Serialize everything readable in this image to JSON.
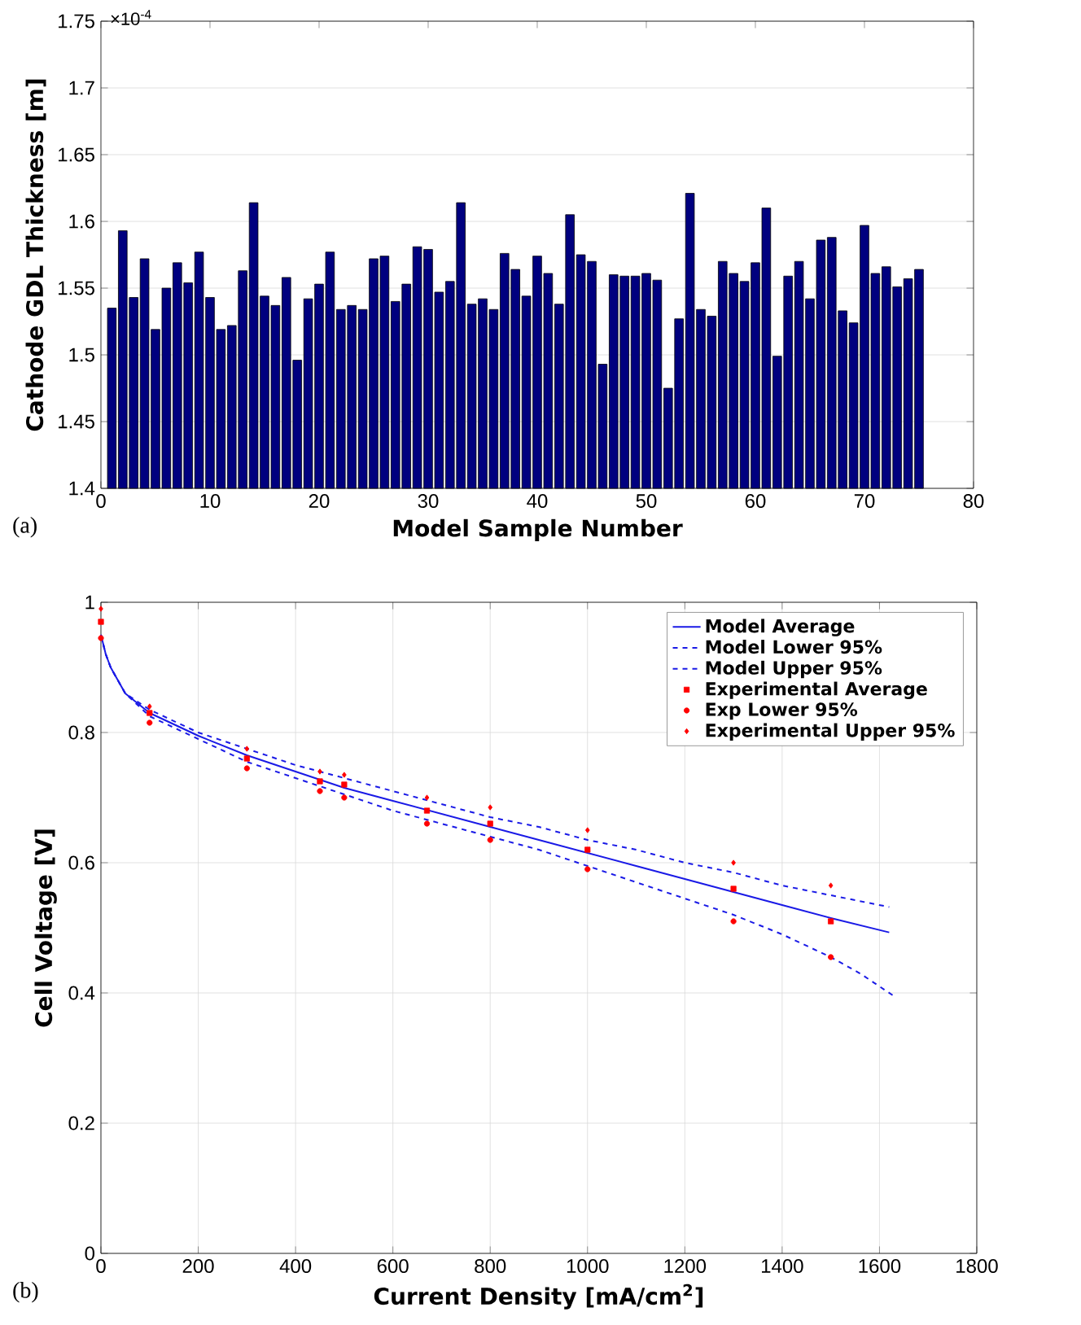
{
  "chart_data": [
    {
      "type": "bar",
      "xlabel": "Model Sample Number",
      "ylabel": "Cathode GDL Thickness [m]",
      "annotations": [
        "×10$^{-4}$",
        "(a)"
      ],
      "x": [
        1,
        2,
        3,
        4,
        5,
        6,
        7,
        8,
        9,
        10,
        11,
        12,
        13,
        14,
        15,
        16,
        17,
        18,
        19,
        20,
        21,
        22,
        23,
        24,
        25,
        26,
        27,
        28,
        29,
        30,
        31,
        32,
        33,
        34,
        35,
        36,
        37,
        38,
        39,
        40,
        41,
        42,
        43,
        44,
        45,
        46,
        47,
        48,
        49,
        50,
        51,
        52,
        53,
        54,
        55,
        56,
        57,
        58,
        59,
        60,
        61,
        62,
        63,
        64,
        65,
        66,
        67,
        68,
        69,
        70,
        71,
        72,
        73,
        74,
        75
      ],
      "values": [
        1.535,
        1.593,
        1.543,
        1.572,
        1.519,
        1.55,
        1.569,
        1.554,
        1.577,
        1.543,
        1.519,
        1.522,
        1.563,
        1.614,
        1.544,
        1.537,
        1.558,
        1.496,
        1.542,
        1.553,
        1.577,
        1.534,
        1.537,
        1.534,
        1.572,
        1.574,
        1.54,
        1.553,
        1.581,
        1.579,
        1.547,
        1.555,
        1.614,
        1.538,
        1.542,
        1.534,
        1.576,
        1.564,
        1.544,
        1.574,
        1.561,
        1.538,
        1.605,
        1.575,
        1.57,
        1.493,
        1.56,
        1.559,
        1.559,
        1.561,
        1.556,
        1.475,
        1.527,
        1.621,
        1.534,
        1.529,
        1.57,
        1.561,
        1.555,
        1.569,
        1.61,
        1.499,
        1.559,
        1.57,
        1.542,
        1.586,
        1.588,
        1.533,
        1.524,
        1.597,
        1.561,
        1.566,
        1.551,
        1.557,
        1.564
      ],
      "color": "#00007f",
      "xlim": [
        0,
        80
      ],
      "xticks": [
        0,
        10,
        20,
        30,
        40,
        50,
        60,
        70,
        80
      ],
      "ylim": [
        1.4,
        1.75
      ],
      "yticks": [
        1.4,
        1.45,
        1.5,
        1.55,
        1.6,
        1.65,
        1.7,
        1.75
      ],
      "grid": "y"
    },
    {
      "type": "line",
      "xlabel": "Current Density [mA/cm$^{2}$]",
      "ylabel": "Cell Voltage [V]",
      "annotations": [
        "(b)"
      ],
      "xlim": [
        0,
        1800
      ],
      "xticks": [
        0,
        200,
        400,
        600,
        800,
        1000,
        1200,
        1400,
        1600,
        1800
      ],
      "ylim": [
        0,
        1
      ],
      "yticks": [
        0,
        0.2,
        0.4,
        0.6,
        0.8,
        1
      ],
      "grid": true,
      "legend": "top right",
      "series": [
        {
          "name": "Model Average",
          "type": "line",
          "line_style": "solid",
          "color": "#1a1ae6",
          "x": [
            0,
            10,
            20,
            50,
            100,
            200,
            300,
            400,
            500,
            600,
            700,
            800,
            900,
            1000,
            1100,
            1200,
            1300,
            1400,
            1500,
            1620
          ],
          "values": [
            0.95,
            0.92,
            0.9,
            0.86,
            0.83,
            0.795,
            0.765,
            0.74,
            0.715,
            0.695,
            0.675,
            0.655,
            0.635,
            0.615,
            0.595,
            0.575,
            0.555,
            0.535,
            0.515,
            0.493
          ]
        },
        {
          "name": "Model Lower 95%",
          "type": "line",
          "line_style": "dashed",
          "color": "#1a1ae6",
          "x": [
            0,
            10,
            20,
            50,
            100,
            200,
            300,
            400,
            500,
            600,
            700,
            800,
            900,
            1000,
            1100,
            1200,
            1300,
            1400,
            1500,
            1560,
            1630
          ],
          "values": [
            0.95,
            0.92,
            0.9,
            0.86,
            0.825,
            0.79,
            0.755,
            0.73,
            0.705,
            0.68,
            0.66,
            0.64,
            0.62,
            0.595,
            0.57,
            0.545,
            0.52,
            0.49,
            0.455,
            0.43,
            0.395
          ]
        },
        {
          "name": "Model Upper 95%",
          "type": "line",
          "line_style": "dashed",
          "color": "#1a1ae6",
          "x": [
            0,
            10,
            20,
            50,
            100,
            200,
            300,
            400,
            500,
            600,
            700,
            800,
            900,
            1000,
            1100,
            1200,
            1300,
            1400,
            1500,
            1620
          ],
          "values": [
            0.95,
            0.92,
            0.9,
            0.86,
            0.835,
            0.8,
            0.775,
            0.75,
            0.73,
            0.71,
            0.69,
            0.67,
            0.655,
            0.635,
            0.62,
            0.6,
            0.585,
            0.565,
            0.55,
            0.532
          ]
        },
        {
          "name": "Experimental Average",
          "type": "scatter",
          "marker": "square",
          "color": "#ff0000",
          "x": [
            0,
            100,
            300,
            450,
            500,
            670,
            800,
            1000,
            1300,
            1500
          ],
          "values": [
            0.97,
            0.83,
            0.76,
            0.725,
            0.72,
            0.68,
            0.66,
            0.62,
            0.56,
            0.51
          ]
        },
        {
          "name": "Exp Lower 95%",
          "type": "scatter",
          "marker": "circle",
          "color": "#ff0000",
          "x": [
            0,
            100,
            300,
            450,
            500,
            670,
            800,
            1000,
            1300,
            1500
          ],
          "values": [
            0.945,
            0.815,
            0.745,
            0.71,
            0.7,
            0.66,
            0.635,
            0.59,
            0.51,
            0.455
          ]
        },
        {
          "name": "Experimental Upper 95%",
          "type": "scatter",
          "marker": "diamond",
          "color": "#ff0000",
          "x": [
            0,
            100,
            300,
            450,
            500,
            670,
            800,
            1000,
            1300,
            1500
          ],
          "values": [
            0.99,
            0.84,
            0.775,
            0.74,
            0.735,
            0.7,
            0.685,
            0.65,
            0.6,
            0.565
          ]
        }
      ]
    }
  ]
}
